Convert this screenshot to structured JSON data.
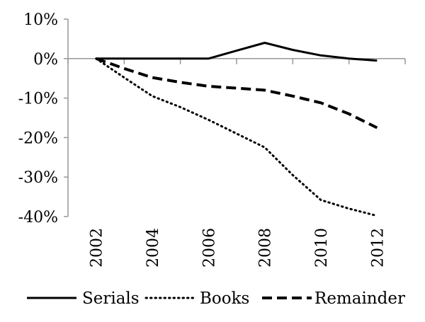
{
  "chart_data": {
    "type": "line",
    "x": [
      2002,
      2003,
      2004,
      2005,
      2006,
      2007,
      2008,
      2009,
      2010,
      2011,
      2012
    ],
    "series": [
      {
        "name": "Serials",
        "style": "solid",
        "values": [
          0,
          0,
          0,
          0,
          0,
          2,
          4,
          2.2,
          0.8,
          0,
          -0.5
        ]
      },
      {
        "name": "Books",
        "style": "dotted",
        "values": [
          0,
          -4.8,
          -9.5,
          -12.3,
          -15.5,
          -19,
          -22.5,
          -29.5,
          -35.8,
          -38,
          -39.8
        ]
      },
      {
        "name": "Remainder",
        "style": "dashed",
        "values": [
          0,
          -2.5,
          -4.8,
          -6,
          -7,
          -7.5,
          -8,
          -9.5,
          -11.2,
          -14,
          -17.5
        ]
      }
    ],
    "x_tick_labels": [
      "2002",
      "2004",
      "2006",
      "2008",
      "2010",
      "2012"
    ],
    "y_tick_labels": [
      "10%",
      "0%",
      "-10%",
      "-20%",
      "-30%",
      "-40%"
    ],
    "y_ticks": [
      10,
      0,
      -10,
      -20,
      -30,
      -40
    ],
    "ylim": [
      -40,
      10
    ],
    "xlim": [
      2001,
      2013
    ],
    "grid": false,
    "legend_position": "bottom",
    "line_color": "#000000"
  }
}
